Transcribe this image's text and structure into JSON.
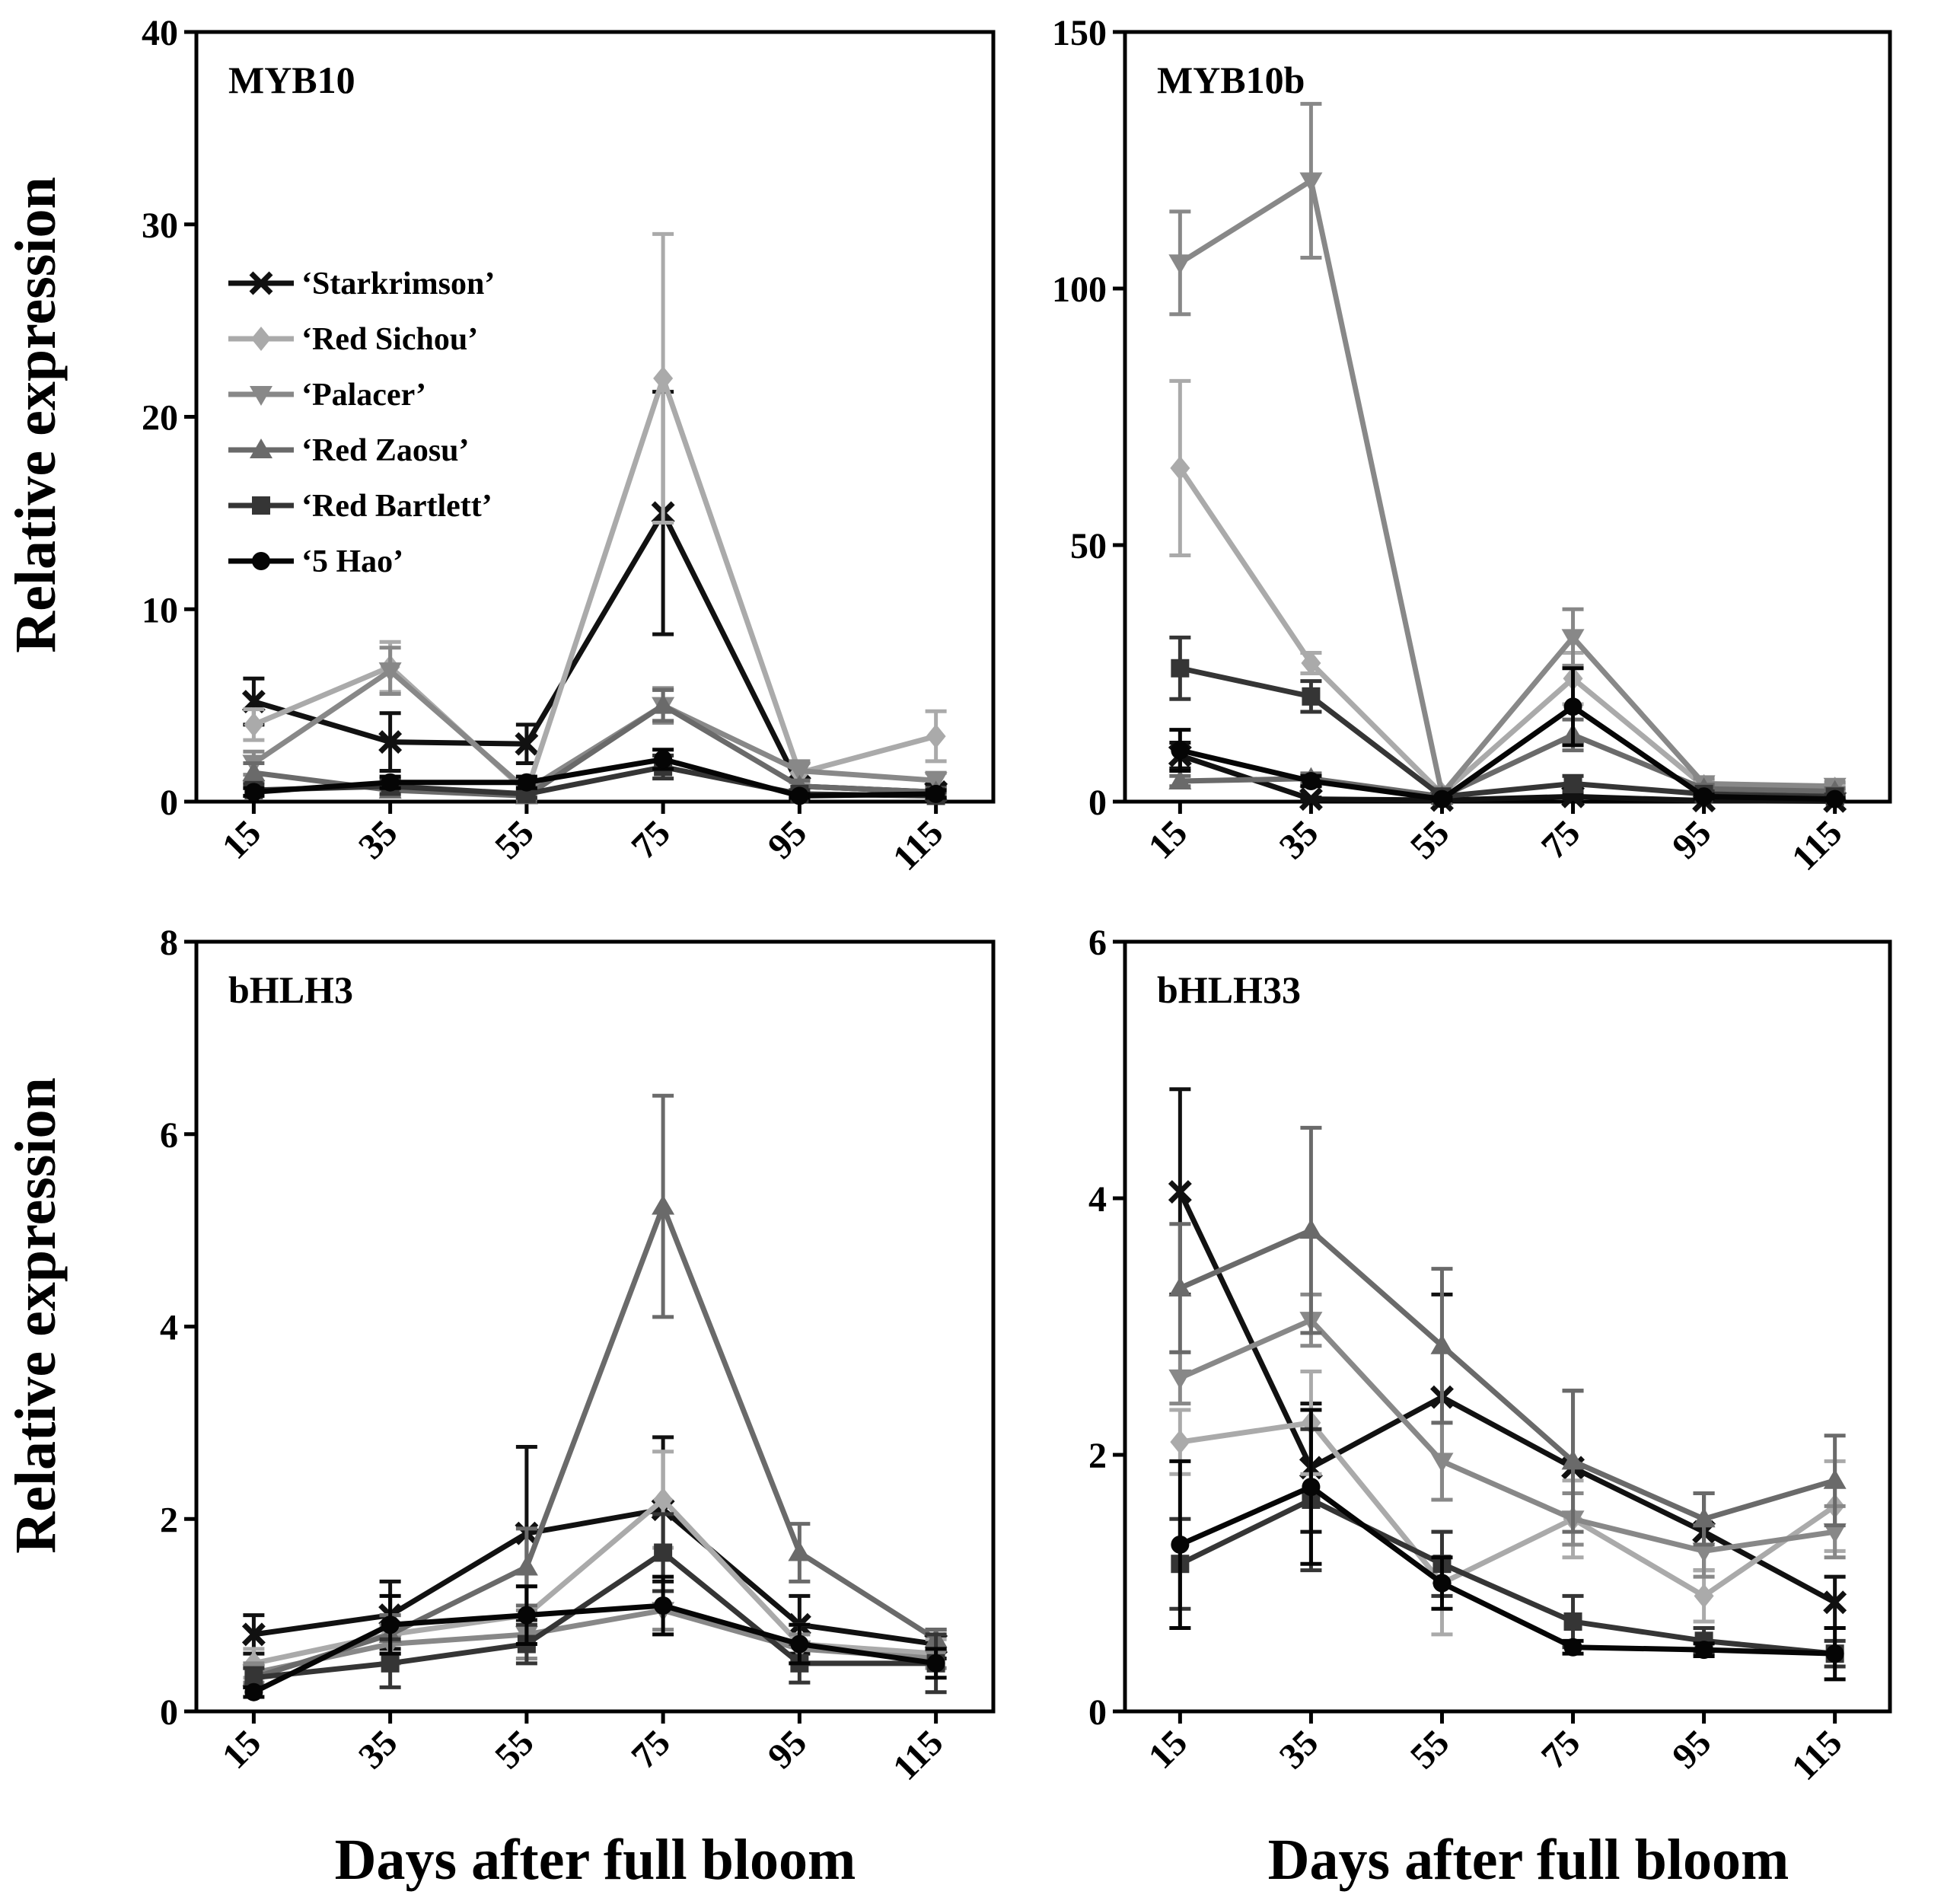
{
  "chart_data": {
    "type": "line",
    "shared_xlabel": "Days after full bloom",
    "shared_ylabel": "Relative expression",
    "x": [
      15,
      35,
      55,
      75,
      95,
      115
    ],
    "series_styles": [
      {
        "name": "‘Starkrimson’",
        "color": "#111111",
        "marker": "x-mark"
      },
      {
        "name": "‘Red Sichou’",
        "color": "#aaaaaa",
        "marker": "diamond"
      },
      {
        "name": "‘Palacer’",
        "color": "#888888",
        "marker": "triangle-down"
      },
      {
        "name": "‘Red Zaosu’",
        "color": "#6a6a6a",
        "marker": "triangle-up"
      },
      {
        "name": "‘Red Bartlett’",
        "color": "#353535",
        "marker": "square"
      },
      {
        "name": "‘5 Hao’",
        "color": "#050505",
        "marker": "circle"
      }
    ],
    "panels": [
      {
        "title": "MYB10",
        "ylim": [
          0,
          40
        ],
        "yticks": [
          0,
          10,
          20,
          30,
          40
        ],
        "legend": "upper-left",
        "series": [
          {
            "name": "‘Starkrimson’",
            "values": [
              5.2,
              3.1,
              3.0,
              15.0,
              0.8,
              0.5
            ],
            "errors": [
              1.2,
              1.5,
              1.0,
              6.3,
              0.4,
              0.3
            ]
          },
          {
            "name": "‘Red Sichou’",
            "values": [
              4.0,
              7.0,
              0.5,
              22.0,
              1.5,
              3.4
            ],
            "errors": [
              0.8,
              1.3,
              0.3,
              7.5,
              0.5,
              1.3
            ]
          },
          {
            "name": "‘Palacer’",
            "values": [
              2.0,
              6.8,
              0.6,
              5.0,
              1.6,
              1.1
            ],
            "errors": [
              0.6,
              1.2,
              0.3,
              0.9,
              0.5,
              0.4
            ]
          },
          {
            "name": "‘Red Zaosu’",
            "values": [
              1.5,
              0.6,
              0.3,
              5.0,
              0.8,
              0.5
            ],
            "errors": [
              0.5,
              0.3,
              0.2,
              0.8,
              0.3,
              0.2
            ]
          },
          {
            "name": "‘Red Bartlett’",
            "values": [
              0.6,
              0.8,
              0.4,
              1.8,
              0.4,
              0.3
            ],
            "errors": [
              0.3,
              0.4,
              0.2,
              0.6,
              0.2,
              0.2
            ]
          },
          {
            "name": "‘5 Hao’",
            "values": [
              0.5,
              1.0,
              1.0,
              2.2,
              0.3,
              0.4
            ],
            "errors": [
              0.2,
              0.3,
              0.3,
              0.5,
              0.1,
              0.2
            ]
          }
        ]
      },
      {
        "title": "MYB10b",
        "ylim": [
          0,
          150
        ],
        "yticks": [
          0,
          50,
          100,
          150
        ],
        "series": [
          {
            "name": "‘Starkrimson’",
            "values": [
              9.0,
              0.5,
              0.3,
              1.0,
              0.2,
              0.1
            ],
            "errors": [
              2.5,
              0.3,
              0.2,
              0.5,
              0.1,
              0.1
            ]
          },
          {
            "name": "‘Red Sichou’",
            "values": [
              65.0,
              27.0,
              1.5,
              24.0,
              3.0,
              2.5
            ],
            "errors": [
              17.0,
              2.0,
              0.5,
              5.0,
              1.0,
              0.8
            ]
          },
          {
            "name": "‘Palacer’",
            "values": [
              105.0,
              121.0,
              1.5,
              32.0,
              3.5,
              3.0
            ],
            "errors": [
              10.0,
              15.0,
              0.5,
              5.5,
              1.0,
              0.8
            ]
          },
          {
            "name": "‘Red Zaosu’",
            "values": [
              4.0,
              4.5,
              1.0,
              13.0,
              2.5,
              2.0
            ],
            "errors": [
              1.0,
              1.0,
              0.4,
              3.0,
              0.8,
              0.6
            ]
          },
          {
            "name": "‘Red Bartlett’",
            "values": [
              26.0,
              20.5,
              1.0,
              3.5,
              1.5,
              1.0
            ],
            "errors": [
              6.0,
              3.0,
              0.4,
              1.5,
              0.5,
              0.4
            ]
          },
          {
            "name": "‘5 Hao’",
            "values": [
              10.0,
              4.0,
              0.5,
              18.5,
              1.0,
              0.5
            ],
            "errors": [
              4.0,
              1.0,
              0.3,
              7.5,
              0.4,
              0.2
            ]
          }
        ]
      },
      {
        "title": "bHLH3",
        "ylim": [
          0,
          8
        ],
        "yticks": [
          0,
          2,
          4,
          6,
          8
        ],
        "series": [
          {
            "name": "‘Starkrimson’",
            "values": [
              0.8,
              1.0,
              1.85,
              2.1,
              0.9,
              0.7
            ],
            "errors": [
              0.2,
              0.35,
              0.9,
              0.75,
              0.3,
              0.15
            ]
          },
          {
            "name": "‘Red Sichou’",
            "values": [
              0.5,
              0.8,
              1.0,
              2.2,
              0.7,
              0.6
            ],
            "errors": [
              0.15,
              0.2,
              0.3,
              0.5,
              0.2,
              0.15
            ]
          },
          {
            "name": "‘Palacer’",
            "values": [
              0.4,
              0.7,
              0.8,
              1.05,
              0.65,
              0.55
            ],
            "errors": [
              0.1,
              0.2,
              0.25,
              0.2,
              0.15,
              0.1
            ]
          },
          {
            "name": "‘Red Zaosu’",
            "values": [
              0.35,
              0.8,
              1.5,
              5.25,
              1.65,
              0.75
            ],
            "errors": [
              0.1,
              0.2,
              0.4,
              1.15,
              0.3,
              0.1
            ]
          },
          {
            "name": "‘Red Bartlett’",
            "values": [
              0.35,
              0.5,
              0.7,
              1.65,
              0.5,
              0.5
            ],
            "errors": [
              0.1,
              0.25,
              0.2,
              0.4,
              0.2,
              0.3
            ]
          },
          {
            "name": "‘5 Hao’",
            "values": [
              0.2,
              0.9,
              1.0,
              1.1,
              0.7,
              0.5
            ],
            "errors": [
              0.05,
              0.3,
              0.3,
              0.3,
              0.2,
              0.15
            ]
          }
        ]
      },
      {
        "title": "bHLH33",
        "ylim": [
          0,
          6
        ],
        "yticks": [
          0,
          2,
          4,
          6
        ],
        "series": [
          {
            "name": "‘Starkrimson’",
            "values": [
              4.05,
              1.9,
              2.45,
              1.9,
              1.4,
              0.85
            ],
            "errors": [
              0.8,
              0.5,
              0.8,
              0.6,
              0.3,
              0.2
            ]
          },
          {
            "name": "‘Red Sichou’",
            "values": [
              2.1,
              2.25,
              1.0,
              1.5,
              0.9,
              1.6
            ],
            "errors": [
              0.25,
              0.4,
              0.4,
              0.3,
              0.2,
              0.35
            ]
          },
          {
            "name": "‘Palacer’",
            "values": [
              2.6,
              3.05,
              1.95,
              1.5,
              1.25,
              1.4
            ],
            "errors": [
              0.2,
              0.2,
              0.3,
              0.2,
              0.2,
              0.2
            ]
          },
          {
            "name": "‘Red Zaosu’",
            "values": [
              3.3,
              3.75,
              2.85,
              1.95,
              1.5,
              1.8
            ],
            "errors": [
              0.5,
              0.8,
              0.6,
              0.55,
              0.2,
              0.35
            ]
          },
          {
            "name": "‘Red Bartlett’",
            "values": [
              1.15,
              1.65,
              1.15,
              0.7,
              0.55,
              0.45
            ],
            "errors": [
              0.35,
              0.55,
              0.25,
              0.2,
              0.1,
              0.1
            ]
          },
          {
            "name": "‘5 Hao’",
            "values": [
              1.3,
              1.75,
              1.0,
              0.5,
              0.48,
              0.45
            ],
            "errors": [
              0.65,
              0.6,
              0.2,
              0.05,
              0.05,
              0.2
            ]
          }
        ]
      }
    ]
  }
}
